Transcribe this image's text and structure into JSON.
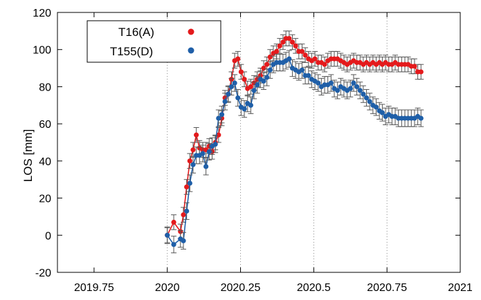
{
  "chart_data": {
    "type": "scatter",
    "title": "",
    "xlabel": "",
    "ylabel": "LOS [mm]",
    "xlim": [
      2019.625,
      2021.0
    ],
    "ylim": [
      -20,
      120
    ],
    "x_ticks": [
      2019.75,
      2020,
      2020.25,
      2020.5,
      2020.75,
      2021
    ],
    "x_tick_labels": [
      "2019.75",
      "2020",
      "2020.25",
      "2020.5",
      "2020.75",
      "2021"
    ],
    "y_ticks": [
      -20,
      0,
      20,
      40,
      60,
      80,
      100,
      120
    ],
    "y_tick_labels": [
      "-20",
      "0",
      "20",
      "40",
      "60",
      "80",
      "100",
      "120"
    ],
    "vertical_gridlines": [
      2020,
      2020.25,
      2020.5,
      2020.75
    ],
    "legend_position": "top-left",
    "series": [
      {
        "name": "T16(A)",
        "color": "#e41a1c",
        "x": [
          2020.0,
          2020.022,
          2020.045,
          2020.055,
          2020.066,
          2020.077,
          2020.088,
          2020.099,
          2020.11,
          2020.121,
          2020.132,
          2020.143,
          2020.153,
          2020.164,
          2020.175,
          2020.186,
          2020.197,
          2020.208,
          2020.219,
          2020.23,
          2020.241,
          2020.252,
          2020.263,
          2020.274,
          2020.285,
          2020.296,
          2020.307,
          2020.318,
          2020.329,
          2020.34,
          2020.351,
          2020.362,
          2020.373,
          2020.384,
          2020.395,
          2020.405,
          2020.416,
          2020.427,
          2020.438,
          2020.449,
          2020.46,
          2020.471,
          2020.482,
          2020.493,
          2020.504,
          2020.515,
          2020.526,
          2020.537,
          2020.548,
          2020.559,
          2020.57,
          2020.581,
          2020.592,
          2020.603,
          2020.614,
          2020.625,
          2020.636,
          2020.647,
          2020.658,
          2020.669,
          2020.68,
          2020.691,
          2020.702,
          2020.713,
          2020.724,
          2020.734,
          2020.745,
          2020.756,
          2020.767,
          2020.778,
          2020.789,
          2020.8,
          2020.811,
          2020.822,
          2020.833,
          2020.844,
          2020.855,
          2020.866
        ],
        "y": [
          0,
          7,
          2,
          11,
          26,
          40,
          46,
          54,
          47,
          46,
          46,
          48,
          45,
          50,
          54,
          63,
          74,
          76,
          84,
          94,
          95,
          88,
          84,
          79,
          80,
          82,
          84,
          86,
          90,
          92,
          96,
          98,
          99,
          102,
          104,
          106,
          106,
          104,
          102,
          99,
          99,
          97,
          95,
          94,
          95,
          93,
          93,
          92,
          94,
          95,
          95,
          95,
          94,
          93,
          92,
          93,
          94,
          93,
          93,
          92,
          93,
          92,
          93,
          92,
          93,
          92,
          93,
          92,
          92,
          93,
          92,
          92,
          92,
          92,
          91,
          91,
          88,
          88
        ],
        "error": 4
      },
      {
        "name": "T155(D)",
        "color": "#1f5fa8",
        "x": [
          2020.0,
          2020.022,
          2020.045,
          2020.055,
          2020.066,
          2020.077,
          2020.088,
          2020.099,
          2020.11,
          2020.121,
          2020.132,
          2020.143,
          2020.153,
          2020.164,
          2020.175,
          2020.186,
          2020.197,
          2020.208,
          2020.219,
          2020.23,
          2020.241,
          2020.252,
          2020.263,
          2020.274,
          2020.285,
          2020.296,
          2020.307,
          2020.318,
          2020.329,
          2020.34,
          2020.351,
          2020.362,
          2020.373,
          2020.384,
          2020.395,
          2020.405,
          2020.416,
          2020.427,
          2020.438,
          2020.449,
          2020.46,
          2020.471,
          2020.482,
          2020.493,
          2020.504,
          2020.515,
          2020.526,
          2020.537,
          2020.548,
          2020.559,
          2020.57,
          2020.581,
          2020.592,
          2020.603,
          2020.614,
          2020.625,
          2020.636,
          2020.647,
          2020.658,
          2020.669,
          2020.68,
          2020.691,
          2020.702,
          2020.713,
          2020.724,
          2020.734,
          2020.745,
          2020.756,
          2020.767,
          2020.778,
          2020.789,
          2020.8,
          2020.811,
          2020.822,
          2020.833,
          2020.844,
          2020.855,
          2020.866
        ],
        "y": [
          0,
          -5,
          -2,
          -3,
          13,
          28,
          38,
          43,
          43,
          44,
          37,
          45,
          48,
          49,
          63,
          65,
          72,
          76,
          80,
          82,
          74,
          69,
          68,
          71,
          70,
          78,
          81,
          84,
          83,
          85,
          89,
          92,
          93,
          93,
          93,
          94,
          95,
          90,
          89,
          88,
          89,
          86,
          86,
          84,
          83,
          82,
          80,
          81,
          81,
          82,
          79,
          78,
          80,
          79,
          78,
          79,
          82,
          80,
          78,
          76,
          74,
          72,
          70,
          69,
          67,
          66,
          64,
          65,
          64,
          64,
          63,
          63,
          63,
          63,
          63,
          63,
          64,
          63
        ],
        "error": 4.5
      }
    ]
  }
}
